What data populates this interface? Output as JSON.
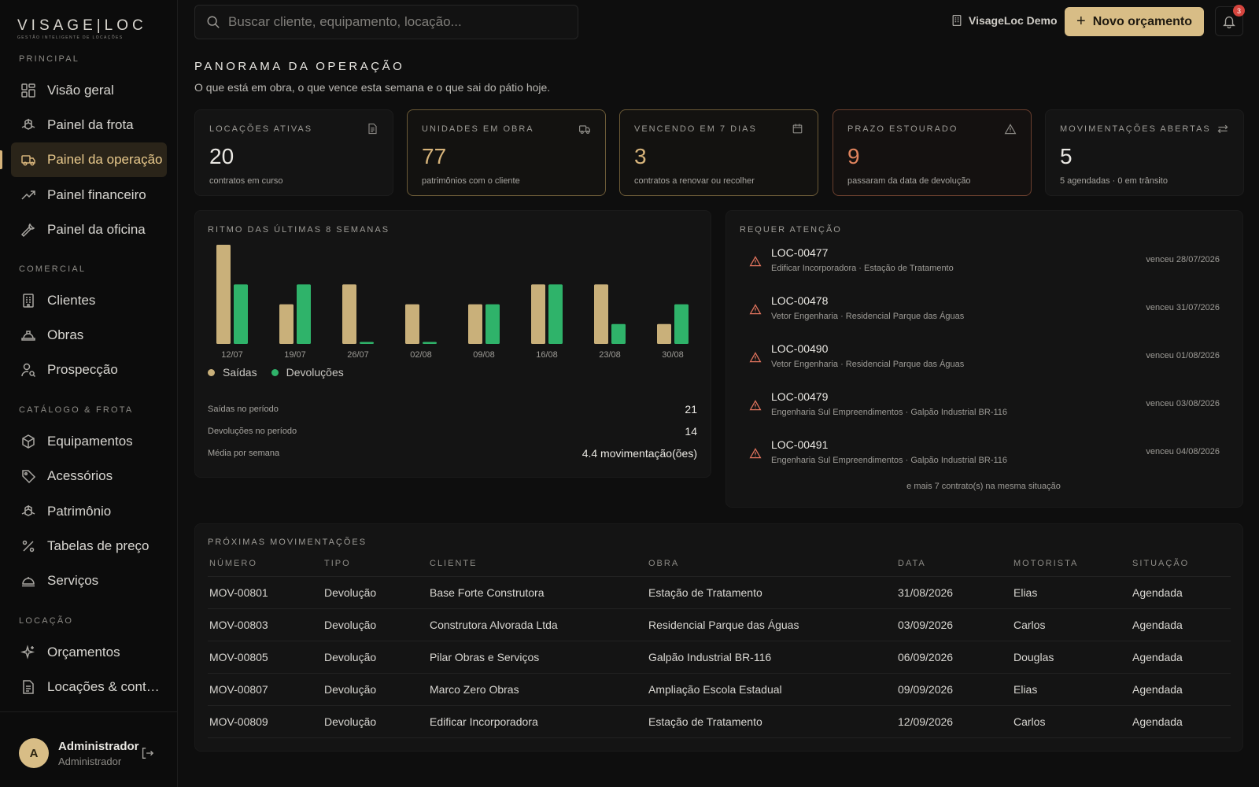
{
  "brand": {
    "name": "VISAGE|LOC",
    "tagline": "GESTÃO INTELIGENTE DE LOCAÇÕES"
  },
  "sidebar": {
    "sections": [
      {
        "title": "PRINCIPAL",
        "items": [
          {
            "label": "Visão geral",
            "icon": "grid-icon"
          },
          {
            "label": "Painel da frota",
            "icon": "boxes-icon"
          },
          {
            "label": "Painel da operação",
            "icon": "truck-icon",
            "active": true
          },
          {
            "label": "Painel financeiro",
            "icon": "trending-up-icon"
          },
          {
            "label": "Painel da oficina",
            "icon": "wrench-icon"
          }
        ]
      },
      {
        "title": "COMERCIAL",
        "items": [
          {
            "label": "Clientes",
            "icon": "building-icon"
          },
          {
            "label": "Obras",
            "icon": "hard-hat-icon"
          },
          {
            "label": "Prospecção",
            "icon": "user-search-icon"
          }
        ]
      },
      {
        "title": "CATÁLOGO & FROTA",
        "items": [
          {
            "label": "Equipamentos",
            "icon": "package-icon"
          },
          {
            "label": "Acessórios",
            "icon": "tag-icon"
          },
          {
            "label": "Patrimônio",
            "icon": "boxes-icon"
          },
          {
            "label": "Tabelas de preço",
            "icon": "percent-icon"
          },
          {
            "label": "Serviços",
            "icon": "bell-service-icon"
          }
        ]
      },
      {
        "title": "LOCAÇÃO",
        "items": [
          {
            "label": "Orçamentos",
            "icon": "sparkles-icon"
          },
          {
            "label": "Locações & contratos",
            "icon": "document-icon"
          }
        ]
      }
    ]
  },
  "user": {
    "initial": "A",
    "name": "Administrador",
    "role": "Administrador"
  },
  "topbar": {
    "search_placeholder": "Buscar cliente, equipamento, locação...",
    "tenant": "VisageLoc Demo",
    "new_button": "Novo orçamento",
    "notifications": "3"
  },
  "page": {
    "title": "PANORAMA DA OPERAÇÃO",
    "subtitle": "O que está em obra, o que vence esta semana e o que sai do pátio hoje."
  },
  "kpis": [
    {
      "label": "LOCAÇÕES ATIVAS",
      "value": "20",
      "foot": "contratos em curso",
      "icon": "document-icon",
      "tone": "neutral"
    },
    {
      "label": "UNIDADES EM OBRA",
      "value": "77",
      "foot": "patrimônios com o cliente",
      "icon": "truck-icon",
      "tone": "gold"
    },
    {
      "label": "VENCENDO EM 7 DIAS",
      "value": "3",
      "foot": "contratos a renovar ou recolher",
      "icon": "calendar-icon",
      "tone": "gold"
    },
    {
      "label": "PRAZO ESTOURADO",
      "value": "9",
      "foot": "passaram da data de devolução",
      "icon": "warning-icon",
      "tone": "orange"
    },
    {
      "label": "MOVIMENTAÇÕES ABERTAS",
      "value": "5",
      "foot": "5 agendadas · 0 em trânsito",
      "icon": "arrows-icon",
      "tone": "neutral"
    }
  ],
  "chart_data": {
    "type": "bar",
    "title": "RITMO DAS ÚLTIMAS 8 SEMANAS",
    "categories": [
      "12/07",
      "19/07",
      "26/07",
      "02/08",
      "09/08",
      "16/08",
      "23/08",
      "30/08"
    ],
    "series": [
      {
        "name": "Saídas",
        "color": "#c9b07a",
        "values": [
          5,
          2,
          3,
          2,
          2,
          3,
          3,
          1
        ]
      },
      {
        "name": "Devoluções",
        "color": "#2fb36a",
        "values": [
          3,
          3,
          0.1,
          0.1,
          2,
          3,
          1,
          2
        ]
      }
    ],
    "ylim": [
      0,
      5
    ],
    "grid": false,
    "legend": "bottom-left"
  },
  "chart_stats": [
    {
      "label": "Saídas no período",
      "value": "21"
    },
    {
      "label": "Devoluções no período",
      "value": "14"
    },
    {
      "label": "Média por semana",
      "value": "4.4 movimentação(ões)"
    }
  ],
  "attention": {
    "title": "REQUER ATENÇÃO",
    "items": [
      {
        "id": "LOC-00477",
        "desc": "Edificar Incorporadora · Estação de Tratamento",
        "date": "venceu 28/07/2026"
      },
      {
        "id": "LOC-00478",
        "desc": "Vetor Engenharia · Residencial Parque das Águas",
        "date": "venceu 31/07/2026"
      },
      {
        "id": "LOC-00490",
        "desc": "Vetor Engenharia · Residencial Parque das Águas",
        "date": "venceu 01/08/2026"
      },
      {
        "id": "LOC-00479",
        "desc": "Engenharia Sul Empreendimentos · Galpão Industrial BR-116",
        "date": "venceu 03/08/2026"
      },
      {
        "id": "LOC-00491",
        "desc": "Engenharia Sul Empreendimentos · Galpão Industrial BR-116",
        "date": "venceu 04/08/2026"
      }
    ],
    "more": "e mais 7 contrato(s) na mesma situação"
  },
  "movements": {
    "title": "PRÓXIMAS MOVIMENTAÇÕES",
    "columns": [
      "NÚMERO",
      "TIPO",
      "CLIENTE",
      "OBRA",
      "DATA",
      "MOTORISTA",
      "SITUAÇÃO"
    ],
    "rows": [
      [
        "MOV-00801",
        "Devolução",
        "Base Forte Construtora",
        "Estação de Tratamento",
        "31/08/2026",
        "Elias",
        "Agendada"
      ],
      [
        "MOV-00803",
        "Devolução",
        "Construtora Alvorada Ltda",
        "Residencial Parque das Águas",
        "03/09/2026",
        "Carlos",
        "Agendada"
      ],
      [
        "MOV-00805",
        "Devolução",
        "Pilar Obras e Serviços",
        "Galpão Industrial BR-116",
        "06/09/2026",
        "Douglas",
        "Agendada"
      ],
      [
        "MOV-00807",
        "Devolução",
        "Marco Zero Obras",
        "Ampliação Escola Estadual",
        "09/09/2026",
        "Elias",
        "Agendada"
      ],
      [
        "MOV-00809",
        "Devolução",
        "Edificar Incorporadora",
        "Estação de Tratamento",
        "12/09/2026",
        "Carlos",
        "Agendada"
      ]
    ]
  }
}
